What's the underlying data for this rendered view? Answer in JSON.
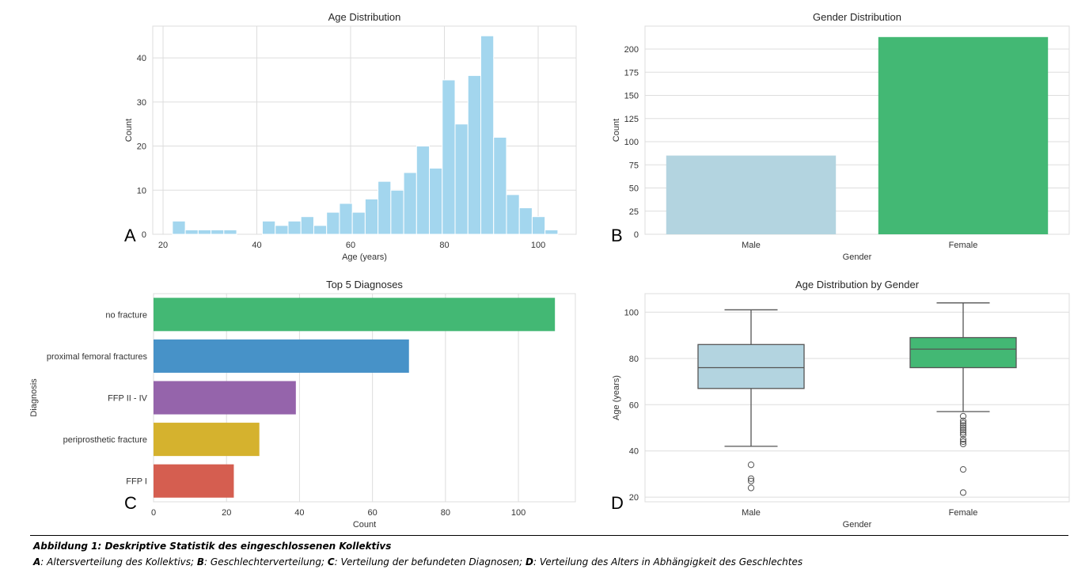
{
  "chart_data": [
    {
      "id": "A",
      "type": "bar",
      "subtype": "histogram",
      "title": "Age Distribution",
      "xlabel": "Age (years)",
      "ylabel": "Count",
      "panel_letter": "A",
      "color": "#a3d6ee",
      "bin_start": 22,
      "bin_width": 2.74,
      "values": [
        3,
        1,
        1,
        1,
        1,
        0,
        0,
        3,
        2,
        3,
        4,
        2,
        5,
        7,
        5,
        8,
        12,
        10,
        14,
        20,
        15,
        35,
        25,
        36,
        45,
        22,
        9,
        6,
        4,
        1
      ],
      "xlim": [
        17.8,
        108.1
      ],
      "ylim": [
        0,
        47.2
      ],
      "xticks": [
        20,
        40,
        60,
        80,
        100
      ],
      "yticks": [
        0,
        10,
        20,
        30,
        40
      ],
      "grid": "both"
    },
    {
      "id": "B",
      "type": "bar",
      "title": "Gender Distribution",
      "xlabel": "Gender",
      "ylabel": "Count",
      "panel_letter": "B",
      "categories": [
        "Male",
        "Female"
      ],
      "values": [
        85,
        213
      ],
      "colors": [
        "#b3d4e0",
        "#43b874"
      ],
      "ylim": [
        0,
        224.8
      ],
      "yticks": [
        0,
        25,
        50,
        75,
        100,
        125,
        150,
        175,
        200
      ],
      "grid": "y"
    },
    {
      "id": "C",
      "type": "bar",
      "orientation": "horizontal",
      "title": "Top 5 Diagnoses",
      "xlabel": "Count",
      "ylabel": "Diagnosis",
      "panel_letter": "C",
      "categories": [
        "no fracture",
        "proximal femoral fractures",
        "FFP II - IV",
        "periprosthetic fracture",
        "FFP I"
      ],
      "values": [
        110,
        70,
        39,
        29,
        22
      ],
      "colors": [
        "#43b874",
        "#4792c8",
        "#9564ab",
        "#d5b22e",
        "#d55e50"
      ],
      "xlim": [
        0,
        115.6
      ],
      "xticks": [
        0,
        20,
        40,
        60,
        80,
        100
      ],
      "grid": "x"
    },
    {
      "id": "D",
      "type": "box",
      "title": "Age Distribution by Gender",
      "xlabel": "Gender",
      "ylabel": "Age (years)",
      "panel_letter": "D",
      "categories": [
        "Male",
        "Female"
      ],
      "colors": [
        "#b3d4e0",
        "#43b874"
      ],
      "boxes": [
        {
          "name": "Male",
          "whisker_low": 42,
          "q1": 67,
          "median": 76,
          "q3": 86,
          "whisker_high": 101,
          "outliers": [
            34,
            28,
            27,
            24
          ]
        },
        {
          "name": "Female",
          "whisker_low": 57,
          "q1": 76,
          "median": 84,
          "q3": 89,
          "whisker_high": 104,
          "outliers": [
            55,
            53,
            52,
            51,
            50,
            49,
            48,
            47,
            45,
            44,
            43,
            32,
            22
          ]
        }
      ],
      "ylim": [
        18,
        108
      ],
      "yticks": [
        20,
        40,
        60,
        80,
        100
      ],
      "grid": "y"
    }
  ],
  "caption": {
    "title": "Abbildung 1: Deskriptive Statistik des eingeschlossenen Kollektivs",
    "items": [
      {
        "key": "A",
        "text": ": Altersverteilung des Kollektivs; "
      },
      {
        "key": "B",
        "text": ": Geschlechterverteilung; "
      },
      {
        "key": "C",
        "text": ": Verteilung der befundeten Diagnosen; "
      },
      {
        "key": "D",
        "text": ": Verteilung des Alters in Abhängigkeit des Geschlechtes"
      }
    ]
  }
}
